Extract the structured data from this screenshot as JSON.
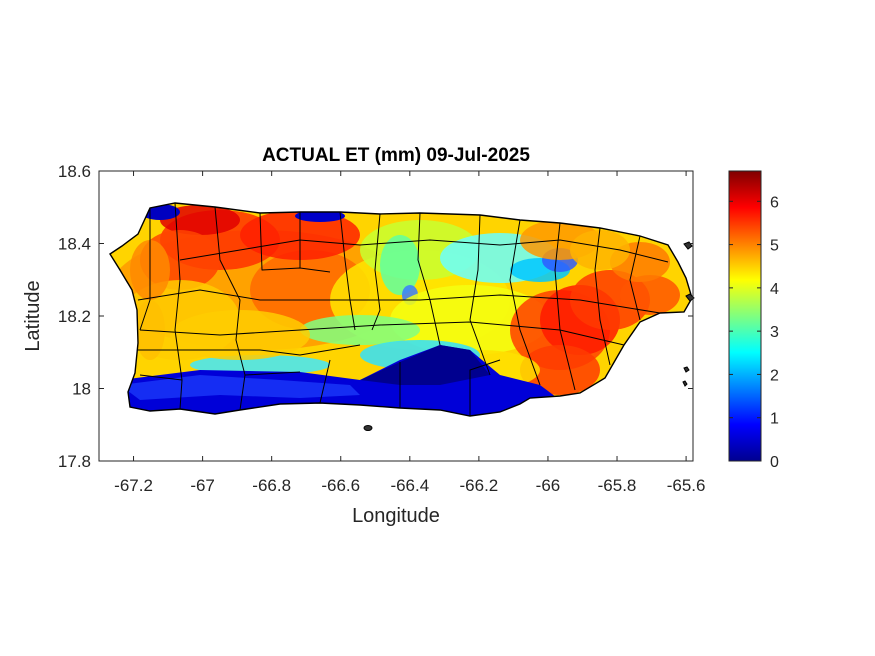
{
  "chart_data": {
    "type": "heatmap",
    "title": "ACTUAL ET (mm) 09-Jul-2025",
    "xlabel": "Longitude",
    "ylabel": "Latitude",
    "xlim": [
      -67.3,
      -65.58
    ],
    "ylim": [
      17.8,
      18.6
    ],
    "x_ticks": [
      -67.2,
      -67,
      -66.8,
      -66.6,
      -66.4,
      -66.2,
      -66,
      -65.8,
      -65.6
    ],
    "x_tick_labels": [
      "-67.2",
      "-67",
      "-66.8",
      "-66.6",
      "-66.4",
      "-66.2",
      "-66",
      "-65.8",
      "-65.6"
    ],
    "y_ticks": [
      17.8,
      18,
      18.2,
      18.4,
      18.6
    ],
    "y_tick_labels": [
      "17.8",
      "18",
      "18.2",
      "18.4",
      "18.6"
    ],
    "colormap": "jet",
    "colorbar": {
      "range": [
        0,
        6.7
      ],
      "ticks": [
        0,
        1,
        2,
        3,
        4,
        5,
        6
      ],
      "tick_labels": [
        "0",
        "1",
        "2",
        "3",
        "4",
        "5",
        "6"
      ]
    },
    "grid": false,
    "legend": "none"
  }
}
